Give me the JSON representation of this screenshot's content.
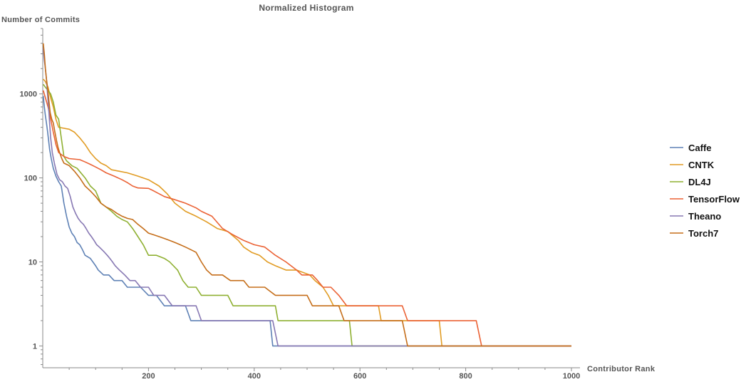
{
  "chart_data": {
    "type": "line",
    "title": "Normalized Histogram",
    "xlabel": "Contributor Rank",
    "ylabel": "Number of Commits",
    "x_scale": "linear",
    "y_scale": "log",
    "xlim": [
      0,
      1000
    ],
    "ylim": [
      0.55,
      6000
    ],
    "x_ticks": [
      200,
      400,
      600,
      800,
      1000
    ],
    "y_ticks": [
      1,
      10,
      100,
      1000
    ],
    "y_tick_labels": [
      "1",
      "10",
      "100",
      "1000"
    ],
    "legend_position": "right",
    "grid": false,
    "series": [
      {
        "name": "Caffe",
        "color": "#5e81b5",
        "points": [
          [
            1,
            950
          ],
          [
            3,
            700
          ],
          [
            5,
            550
          ],
          [
            7,
            450
          ],
          [
            9,
            360
          ],
          [
            11,
            280
          ],
          [
            13,
            220
          ],
          [
            16,
            170
          ],
          [
            20,
            130
          ],
          [
            25,
            105
          ],
          [
            30,
            90
          ],
          [
            35,
            80
          ],
          [
            40,
            50
          ],
          [
            45,
            35
          ],
          [
            50,
            26
          ],
          [
            55,
            22
          ],
          [
            60,
            20
          ],
          [
            65,
            17
          ],
          [
            70,
            16
          ],
          [
            75,
            14
          ],
          [
            80,
            12
          ],
          [
            90,
            11
          ],
          [
            100,
            9
          ],
          [
            105,
            8
          ],
          [
            115,
            7
          ],
          [
            125,
            7
          ],
          [
            135,
            6
          ],
          [
            150,
            6
          ],
          [
            160,
            5
          ],
          [
            175,
            5
          ],
          [
            185,
            5
          ],
          [
            200,
            4
          ],
          [
            215,
            4
          ],
          [
            230,
            3
          ],
          [
            255,
            3
          ],
          [
            270,
            3
          ],
          [
            280,
            2
          ],
          [
            300,
            2
          ],
          [
            330,
            2
          ],
          [
            360,
            2
          ],
          [
            400,
            2
          ],
          [
            430,
            2
          ],
          [
            435,
            1
          ],
          [
            500,
            1
          ],
          [
            600,
            1
          ],
          [
            700,
            1
          ],
          [
            800,
            1
          ],
          [
            900,
            1
          ],
          [
            1000,
            1
          ]
        ]
      },
      {
        "name": "CNTK",
        "color": "#e19c24",
        "points": [
          [
            1,
            1500
          ],
          [
            5,
            1400
          ],
          [
            10,
            1200
          ],
          [
            15,
            900
          ],
          [
            20,
            700
          ],
          [
            25,
            500
          ],
          [
            30,
            400
          ],
          [
            50,
            380
          ],
          [
            60,
            350
          ],
          [
            70,
            300
          ],
          [
            80,
            250
          ],
          [
            90,
            200
          ],
          [
            100,
            170
          ],
          [
            110,
            150
          ],
          [
            120,
            140
          ],
          [
            130,
            125
          ],
          [
            145,
            120
          ],
          [
            160,
            115
          ],
          [
            180,
            105
          ],
          [
            200,
            95
          ],
          [
            220,
            80
          ],
          [
            235,
            65
          ],
          [
            250,
            50
          ],
          [
            270,
            40
          ],
          [
            290,
            35
          ],
          [
            310,
            30
          ],
          [
            330,
            25
          ],
          [
            350,
            23
          ],
          [
            370,
            18
          ],
          [
            380,
            15
          ],
          [
            395,
            13
          ],
          [
            410,
            12
          ],
          [
            425,
            10
          ],
          [
            440,
            9
          ],
          [
            460,
            8
          ],
          [
            480,
            8
          ],
          [
            505,
            7
          ],
          [
            515,
            6
          ],
          [
            530,
            5
          ],
          [
            540,
            4
          ],
          [
            550,
            3
          ],
          [
            600,
            3
          ],
          [
            635,
            3
          ],
          [
            640,
            2
          ],
          [
            700,
            2
          ],
          [
            750,
            2
          ],
          [
            755,
            1
          ],
          [
            800,
            1
          ],
          [
            900,
            1
          ],
          [
            1000,
            1
          ]
        ]
      },
      {
        "name": "DL4J",
        "color": "#8fb032",
        "points": [
          [
            1,
            1300
          ],
          [
            5,
            1200
          ],
          [
            10,
            1100
          ],
          [
            15,
            1000
          ],
          [
            20,
            800
          ],
          [
            25,
            560
          ],
          [
            30,
            500
          ],
          [
            35,
            300
          ],
          [
            40,
            180
          ],
          [
            45,
            160
          ],
          [
            55,
            140
          ],
          [
            65,
            130
          ],
          [
            80,
            100
          ],
          [
            90,
            80
          ],
          [
            100,
            70
          ],
          [
            110,
            50
          ],
          [
            120,
            45
          ],
          [
            130,
            40
          ],
          [
            140,
            35
          ],
          [
            150,
            32
          ],
          [
            160,
            30
          ],
          [
            170,
            25
          ],
          [
            180,
            20
          ],
          [
            190,
            16
          ],
          [
            200,
            12
          ],
          [
            215,
            12
          ],
          [
            230,
            11
          ],
          [
            240,
            10
          ],
          [
            255,
            8
          ],
          [
            265,
            6
          ],
          [
            275,
            5
          ],
          [
            290,
            5
          ],
          [
            300,
            4
          ],
          [
            320,
            4
          ],
          [
            350,
            4
          ],
          [
            360,
            3
          ],
          [
            400,
            3
          ],
          [
            440,
            3
          ],
          [
            445,
            2
          ],
          [
            500,
            2
          ],
          [
            580,
            2
          ],
          [
            585,
            1
          ],
          [
            600,
            1
          ],
          [
            700,
            1
          ],
          [
            800,
            1
          ],
          [
            900,
            1
          ],
          [
            1000,
            1
          ]
        ]
      },
      {
        "name": "TensorFlow",
        "color": "#eb6235",
        "points": [
          [
            1,
            1100
          ],
          [
            5,
            900
          ],
          [
            10,
            700
          ],
          [
            15,
            500
          ],
          [
            20,
            350
          ],
          [
            25,
            250
          ],
          [
            30,
            200
          ],
          [
            40,
            180
          ],
          [
            50,
            170
          ],
          [
            70,
            165
          ],
          [
            80,
            155
          ],
          [
            90,
            145
          ],
          [
            100,
            135
          ],
          [
            110,
            125
          ],
          [
            120,
            115
          ],
          [
            135,
            105
          ],
          [
            150,
            95
          ],
          [
            160,
            88
          ],
          [
            170,
            80
          ],
          [
            180,
            76
          ],
          [
            200,
            75
          ],
          [
            210,
            70
          ],
          [
            230,
            60
          ],
          [
            250,
            55
          ],
          [
            270,
            50
          ],
          [
            290,
            44
          ],
          [
            300,
            40
          ],
          [
            320,
            35
          ],
          [
            340,
            25
          ],
          [
            360,
            21
          ],
          [
            380,
            18
          ],
          [
            400,
            16
          ],
          [
            420,
            15
          ],
          [
            440,
            12
          ],
          [
            460,
            10
          ],
          [
            480,
            8
          ],
          [
            490,
            7
          ],
          [
            510,
            7
          ],
          [
            520,
            6
          ],
          [
            530,
            5
          ],
          [
            545,
            5
          ],
          [
            560,
            4
          ],
          [
            575,
            3
          ],
          [
            600,
            3
          ],
          [
            650,
            3
          ],
          [
            680,
            3
          ],
          [
            690,
            2
          ],
          [
            750,
            2
          ],
          [
            790,
            2
          ],
          [
            820,
            2
          ],
          [
            830,
            1
          ],
          [
            900,
            1
          ],
          [
            1000,
            1
          ]
        ]
      },
      {
        "name": "Theano",
        "color": "#8778b3",
        "points": [
          [
            1,
            3500
          ],
          [
            3,
            2500
          ],
          [
            5,
            2000
          ],
          [
            7,
            1500
          ],
          [
            9,
            1000
          ],
          [
            11,
            700
          ],
          [
            13,
            450
          ],
          [
            15,
            300
          ],
          [
            18,
            200
          ],
          [
            22,
            150
          ],
          [
            27,
            110
          ],
          [
            32,
            95
          ],
          [
            37,
            90
          ],
          [
            42,
            80
          ],
          [
            47,
            75
          ],
          [
            52,
            60
          ],
          [
            57,
            45
          ],
          [
            62,
            38
          ],
          [
            67,
            33
          ],
          [
            72,
            30
          ],
          [
            77,
            28
          ],
          [
            82,
            25
          ],
          [
            87,
            22
          ],
          [
            92,
            20
          ],
          [
            97,
            18
          ],
          [
            102,
            16
          ],
          [
            107,
            15
          ],
          [
            112,
            14
          ],
          [
            117,
            13
          ],
          [
            122,
            12
          ],
          [
            127,
            11
          ],
          [
            132,
            10
          ],
          [
            137,
            9
          ],
          [
            145,
            8
          ],
          [
            155,
            7
          ],
          [
            165,
            6
          ],
          [
            175,
            6
          ],
          [
            185,
            5
          ],
          [
            200,
            5
          ],
          [
            210,
            4
          ],
          [
            230,
            4
          ],
          [
            245,
            3
          ],
          [
            270,
            3
          ],
          [
            290,
            3
          ],
          [
            300,
            2
          ],
          [
            350,
            2
          ],
          [
            400,
            2
          ],
          [
            435,
            2
          ],
          [
            445,
            1
          ],
          [
            500,
            1
          ],
          [
            600,
            1
          ],
          [
            700,
            1
          ],
          [
            800,
            1
          ],
          [
            900,
            1
          ],
          [
            1000,
            1
          ]
        ]
      },
      {
        "name": "Torch7",
        "color": "#c56e1a",
        "points": [
          [
            1,
            4000
          ],
          [
            3,
            3000
          ],
          [
            5,
            2000
          ],
          [
            7,
            1500
          ],
          [
            9,
            1200
          ],
          [
            11,
            900
          ],
          [
            14,
            600
          ],
          [
            17,
            500
          ],
          [
            20,
            450
          ],
          [
            23,
            350
          ],
          [
            26,
            280
          ],
          [
            29,
            230
          ],
          [
            32,
            200
          ],
          [
            36,
            170
          ],
          [
            40,
            150
          ],
          [
            50,
            140
          ],
          [
            60,
            120
          ],
          [
            70,
            100
          ],
          [
            80,
            80
          ],
          [
            90,
            70
          ],
          [
            100,
            60
          ],
          [
            110,
            50
          ],
          [
            120,
            45
          ],
          [
            130,
            42
          ],
          [
            140,
            38
          ],
          [
            150,
            35
          ],
          [
            160,
            33
          ],
          [
            170,
            32
          ],
          [
            180,
            28
          ],
          [
            190,
            25
          ],
          [
            200,
            22
          ],
          [
            210,
            21
          ],
          [
            220,
            20
          ],
          [
            230,
            19
          ],
          [
            240,
            18
          ],
          [
            250,
            17
          ],
          [
            260,
            16
          ],
          [
            270,
            15
          ],
          [
            280,
            14
          ],
          [
            290,
            13
          ],
          [
            300,
            10
          ],
          [
            310,
            8
          ],
          [
            320,
            7
          ],
          [
            340,
            7
          ],
          [
            355,
            6
          ],
          [
            380,
            6
          ],
          [
            390,
            5
          ],
          [
            420,
            5
          ],
          [
            440,
            4
          ],
          [
            500,
            4
          ],
          [
            510,
            3
          ],
          [
            560,
            3
          ],
          [
            570,
            2
          ],
          [
            620,
            2
          ],
          [
            680,
            2
          ],
          [
            690,
            1
          ],
          [
            800,
            1
          ],
          [
            900,
            1
          ],
          [
            1000,
            1
          ]
        ]
      }
    ]
  }
}
